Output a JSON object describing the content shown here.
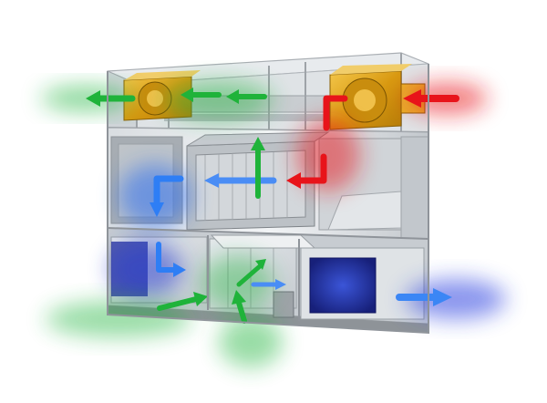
{
  "illustration": {
    "subject": "air-handling-unit-cutaway",
    "colors": {
      "hot_air": "#e8141a",
      "cold_air": "#2a6df0",
      "fresh_air": "#1fb33a",
      "fan_housing": "#e3a81f",
      "frame": "#b9bec4",
      "panel": "#8d939a",
      "background": "#ffffff"
    },
    "icons": [
      "fan-icon",
      "heat-exchanger-icon",
      "arrow-icon"
    ]
  }
}
